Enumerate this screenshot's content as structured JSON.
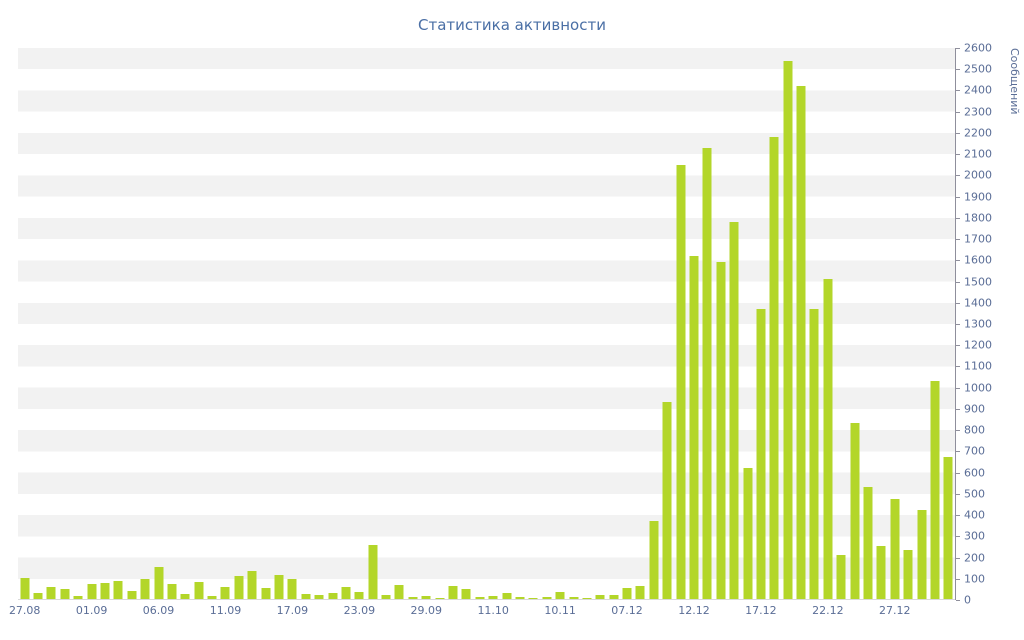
{
  "chart": {
    "title": "Статистика активности",
    "y_axis_title": "Сообщений"
  },
  "colors": {
    "bar": "#b3d629",
    "title_text": "#4a6fa5",
    "axis_text": "#5a6d96",
    "axis_line": "#8f8f9c",
    "stripe": "#f2f2f2",
    "background": "#ffffff"
  },
  "chart_data": {
    "type": "bar",
    "title": "Статистика активности",
    "xlabel": "",
    "ylabel": "Сообщений",
    "ylim": [
      0,
      2600
    ],
    "y_tick_step": 100,
    "grid": "striped-bands",
    "legend": "none",
    "bar_color": "#b3d629",
    "tick_every": 5,
    "tick_labels": [
      "27.08",
      "01.09",
      "06.09",
      "11.09",
      "17.09",
      "23.09",
      "29.09",
      "11.10",
      "10.11",
      "07.12",
      "12.12",
      "17.12",
      "22.12",
      "27.12"
    ],
    "values": [
      100,
      30,
      55,
      45,
      15,
      70,
      75,
      85,
      40,
      95,
      150,
      70,
      25,
      80,
      15,
      55,
      110,
      130,
      50,
      115,
      95,
      25,
      20,
      30,
      55,
      35,
      255,
      20,
      65,
      10,
      15,
      5,
      60,
      45,
      10,
      15,
      30,
      10,
      5,
      10,
      35,
      10,
      5,
      20,
      20,
      50,
      60,
      370,
      930,
      2050,
      1620,
      2130,
      1590,
      1780,
      620,
      1370,
      2180,
      2540,
      2420,
      1370,
      1510,
      210,
      830,
      530,
      250,
      470,
      230,
      420,
      1030,
      670
    ]
  }
}
